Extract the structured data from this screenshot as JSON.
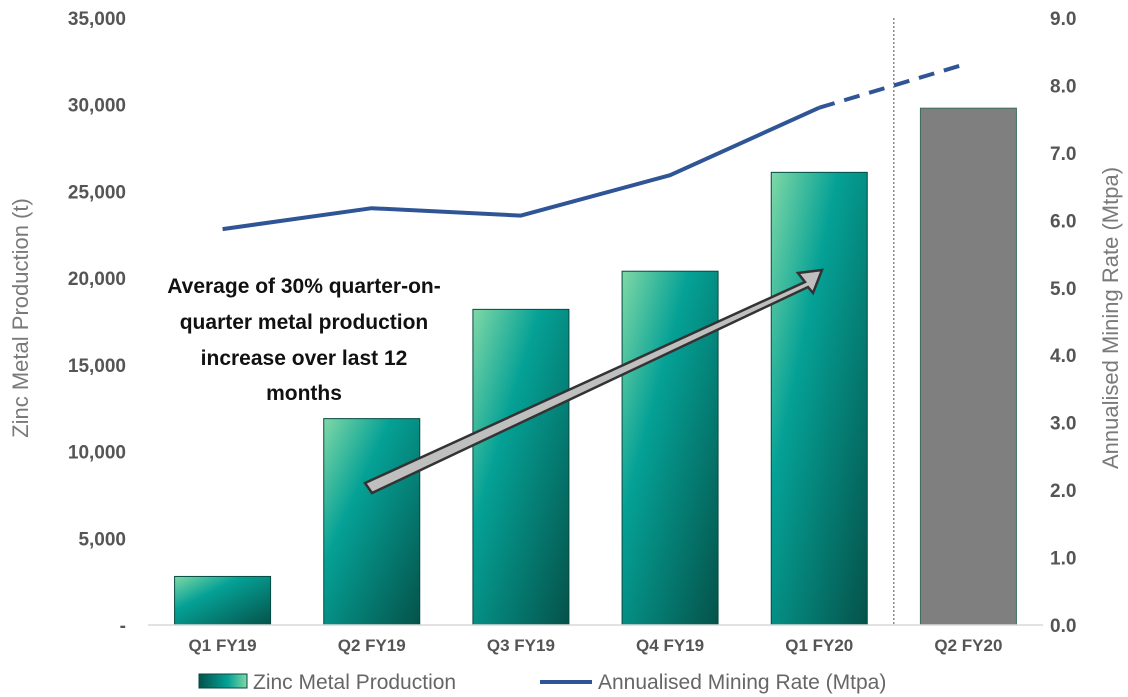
{
  "chart_data": {
    "type": "bar",
    "categories": [
      "Q1 FY19",
      "Q2 FY19",
      "Q3 FY19",
      "Q4 FY19",
      "Q1 FY20",
      "Q2 FY20"
    ],
    "series": [
      {
        "name": "Zinc Metal Production",
        "type": "bar",
        "axis": "left",
        "values": [
          2800,
          11900,
          18200,
          20400,
          26100,
          29800
        ],
        "colors": [
          "#0b7a6a",
          "#0b7a6a",
          "#0b7a6a",
          "#0b7a6a",
          "#0b7a6a",
          "#7f7f7f"
        ]
      },
      {
        "name": "Annualised Mining Rate (Mtpa)",
        "type": "line",
        "axis": "right",
        "color": "#2f5597",
        "values": [
          5.87,
          6.18,
          6.07,
          6.67,
          7.67,
          8.33
        ],
        "dashed_from_index": 4
      }
    ],
    "ylabel": "Zinc Metal Production (t)",
    "y2label": "Annualised Mining Rate (Mtpa)",
    "ylim": [
      0,
      35000
    ],
    "y2lim": [
      0,
      9
    ],
    "yticks": [
      "-",
      "5,000",
      "10,000",
      "15,000",
      "20,000",
      "25,000",
      "30,000",
      "35,000"
    ],
    "y2ticks": [
      "0.0",
      "1.0",
      "2.0",
      "3.0",
      "4.0",
      "5.0",
      "6.0",
      "7.0",
      "8.0",
      "9.0"
    ],
    "annotation": [
      "Average of 30% quarter-on-",
      "quarter metal production",
      "increase over last 12",
      "months"
    ],
    "grid": false,
    "legend_position": "bottom"
  }
}
